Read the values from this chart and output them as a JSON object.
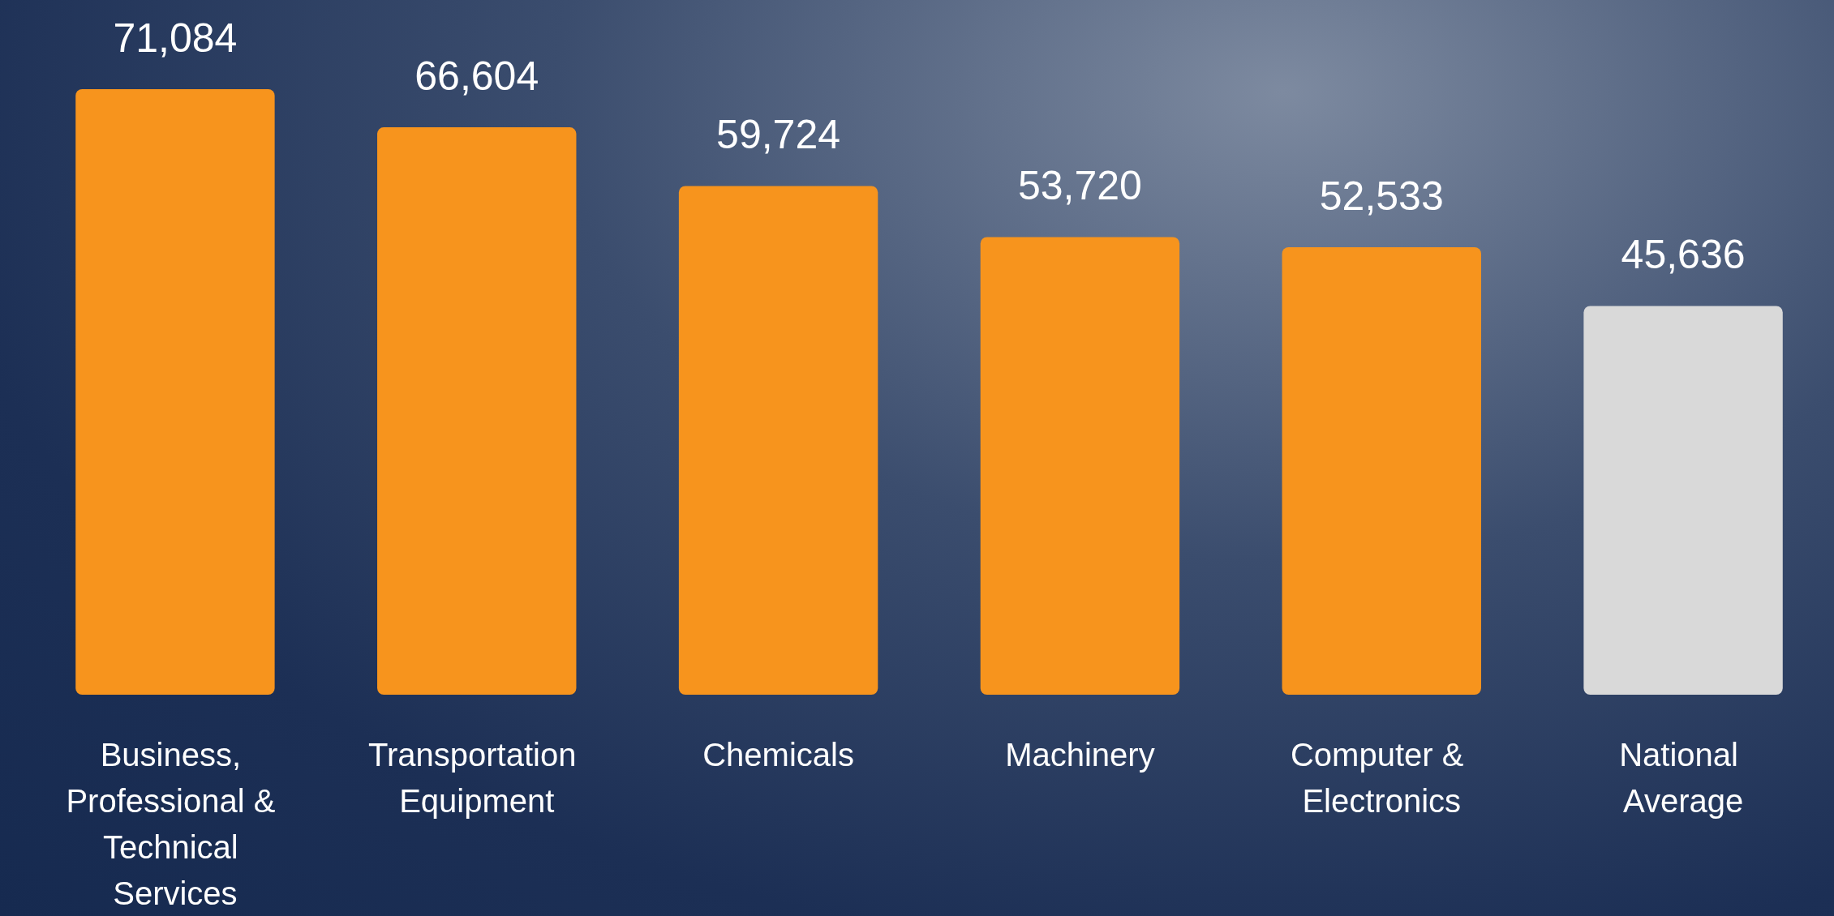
{
  "chart_data": {
    "type": "bar",
    "categories": [
      "Business, Professional & Technical Services",
      "Transportation Equipment",
      "Chemicals",
      "Machinery",
      "Computer & Electronics",
      "National Average"
    ],
    "values": [
      71084,
      66604,
      59724,
      53720,
      52533,
      45636
    ],
    "value_labels": [
      "71,084",
      "66,604",
      "59,724",
      "53,720",
      "52,533",
      "45,636"
    ],
    "colors": [
      "#f7941d",
      "#f7941d",
      "#f7941d",
      "#f7941d",
      "#f7941d",
      "#d9d9d9"
    ]
  }
}
